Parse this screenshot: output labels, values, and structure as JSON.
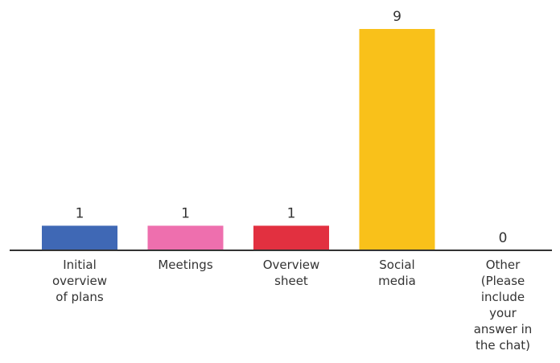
{
  "chart_data": {
    "type": "bar",
    "categories": [
      [
        "Initial",
        "overview",
        "of plans"
      ],
      [
        "Meetings"
      ],
      [
        "Overview",
        "sheet"
      ],
      [
        "Social",
        "media"
      ],
      [
        "Other",
        "(Please",
        "include",
        "your",
        "answer in",
        "the chat)"
      ]
    ],
    "values": [
      1,
      1,
      1,
      9,
      0
    ],
    "data_labels": [
      "1",
      "1",
      "1",
      "9",
      "0"
    ],
    "colors": [
      "#3f68b5",
      "#ee6fae",
      "#e23040",
      "#f9c11a",
      "#cccccc"
    ],
    "axis_color": "#333333",
    "ylim": [
      0,
      9
    ],
    "grid": false,
    "legend": "none"
  }
}
